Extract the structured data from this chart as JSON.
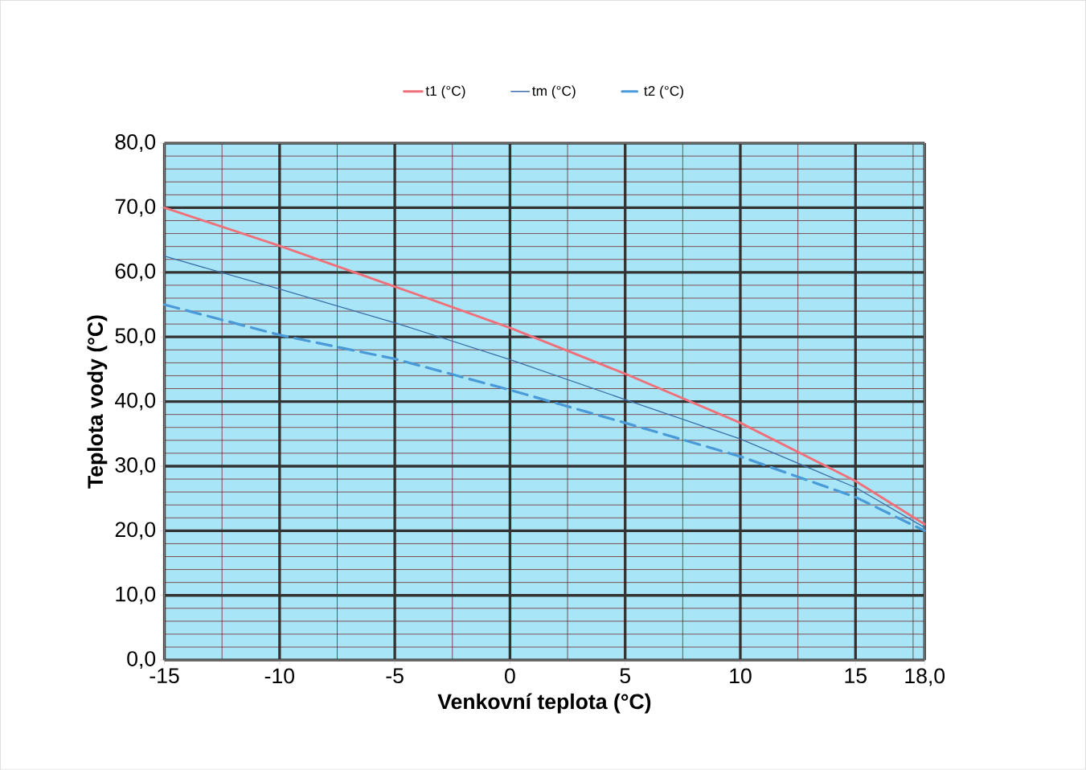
{
  "chart_data": {
    "type": "line",
    "xlabel": "Venkovní teplota (°C)",
    "ylabel": "Teplota vody (°C)",
    "x": [
      -15,
      -10,
      -5,
      0,
      5,
      10,
      15,
      18
    ],
    "series": [
      {
        "name": "t1 (°C)",
        "color": "#f0707a",
        "values": [
          70,
          64.1,
          57.8,
          51.4,
          44.3,
          36.7,
          27.7,
          21
        ],
        "line_style": "solid"
      },
      {
        "name": "tm (°C)",
        "color": "#3f6fa8",
        "values": [
          62.5,
          57.4,
          52.2,
          46.5,
          40.3,
          34.2,
          26.7,
          20.5
        ],
        "line_style": "solid"
      },
      {
        "name": "t2 (°C)",
        "color": "#4a9ad8",
        "values": [
          55,
          50.3,
          46.6,
          41.8,
          36.7,
          31.5,
          25.2,
          20
        ],
        "line_style": "dashed"
      }
    ],
    "xlim": [
      -15,
      18
    ],
    "ylim": [
      0,
      80
    ],
    "xticks": [
      -15,
      -10,
      -5,
      0,
      5,
      10,
      15,
      {
        "value": 18,
        "label": "18,0"
      }
    ],
    "yticks": [
      {
        "value": 0,
        "label": "0,0"
      },
      {
        "value": 10,
        "label": "10,0"
      },
      {
        "value": 20,
        "label": "20,0"
      },
      {
        "value": 30,
        "label": "30,0"
      },
      {
        "value": 40,
        "label": "40,0"
      },
      {
        "value": 50,
        "label": "50,0"
      },
      {
        "value": 60,
        "label": "60,0"
      },
      {
        "value": 70,
        "label": "70,0"
      },
      {
        "value": 80,
        "label": "80,0"
      }
    ],
    "grid": true,
    "legend": "top",
    "marker": "none"
  }
}
